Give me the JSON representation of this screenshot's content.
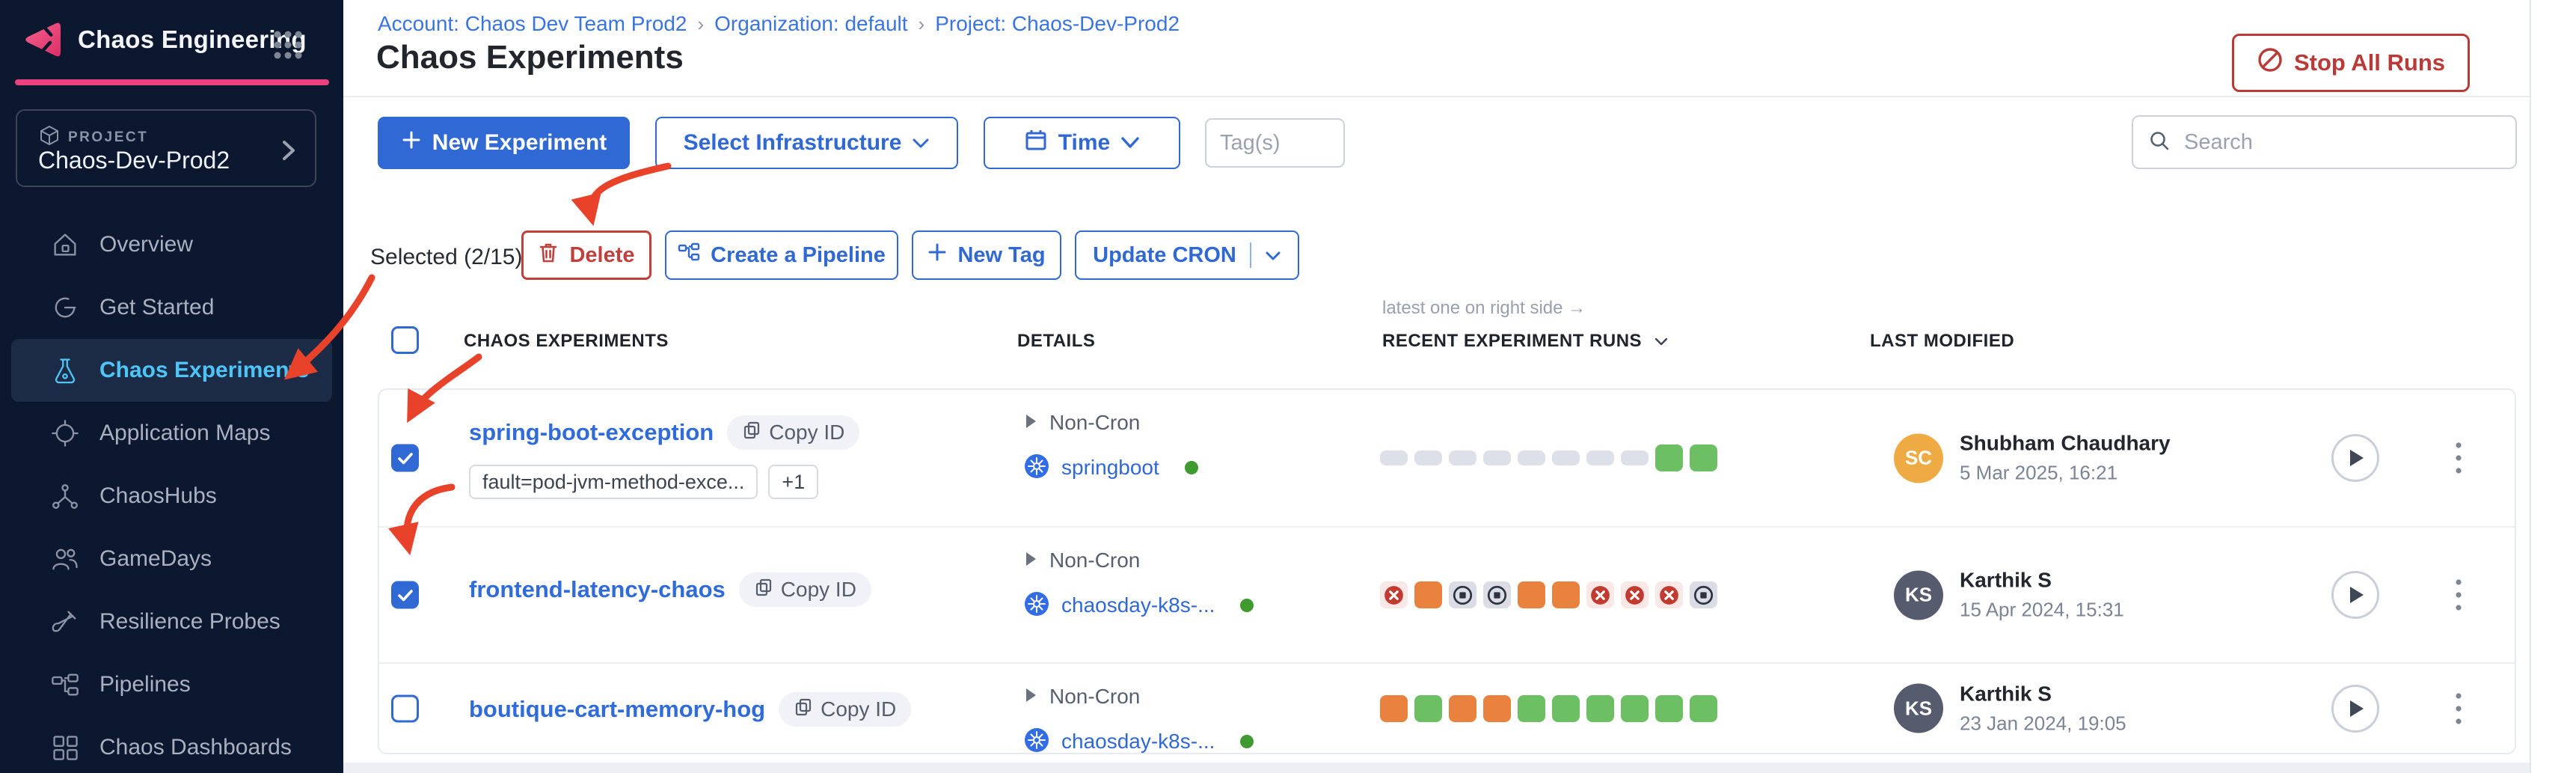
{
  "colors": {
    "sidebar_bg": "#0C1830",
    "accent_pink": "#E8417C",
    "primary_blue": "#3069D3",
    "link_blue": "#2F6BD9",
    "active_nav": "#4FC4F7",
    "danger_red": "#B93A36",
    "run_green": "#6CBF62",
    "run_orange": "#E8823E",
    "run_failed": "#C0392B",
    "infra_green_dot": "#3F9A2F",
    "annotation_red": "#E8432A"
  },
  "sidebar": {
    "module_title": "Chaos Engineering",
    "project_label": "PROJECT",
    "project_name": "Chaos-Dev-Prod2",
    "items": [
      {
        "label": "Overview"
      },
      {
        "label": "Get Started"
      },
      {
        "label": "Chaos Experiments"
      },
      {
        "label": "Application Maps"
      },
      {
        "label": "ChaosHubs"
      },
      {
        "label": "GameDays"
      },
      {
        "label": "Resilience Probes"
      },
      {
        "label": "Pipelines"
      },
      {
        "label": "Chaos Dashboards"
      }
    ]
  },
  "header": {
    "breadcrumb": [
      "Account: Chaos Dev Team Prod2",
      "Organization: default",
      "Project: Chaos-Dev-Prod2"
    ],
    "breadcrumb_separator": "›",
    "title": "Chaos Experiments",
    "stop_all_runs": "Stop All Runs"
  },
  "toolbar": {
    "new_experiment": "New Experiment",
    "select_infrastructure": "Select Infrastructure",
    "time": "Time",
    "tags_placeholder": "Tag(s)",
    "search_placeholder": "Search"
  },
  "actions": {
    "selected": "Selected (2/15)",
    "delete": "Delete",
    "create_pipeline": "Create a Pipeline",
    "new_tag": "New Tag",
    "update_cron": "Update CRON"
  },
  "table": {
    "note": "latest one on right side →",
    "headers": [
      "CHAOS EXPERIMENTS",
      "DETAILS",
      "RECENT EXPERIMENT RUNS",
      "LAST MODIFIED"
    ],
    "copy_id_label": "Copy ID",
    "select_all_checked": false,
    "rows": [
      {
        "name": "spring-boot-exception",
        "checked": true,
        "tags": [
          "fault=pod-jvm-method-exce...",
          "+1"
        ],
        "cron": "Non-Cron",
        "infra": "springboot",
        "runs": [
          "gray",
          "gray",
          "gray",
          "gray",
          "gray",
          "gray",
          "gray",
          "gray",
          "green",
          "green"
        ],
        "modified": {
          "initials": "SC",
          "avatar_color": "#EEAB43",
          "name": "Shubham Chaudhary",
          "date": "5 Mar 2025, 16:21"
        }
      },
      {
        "name": "frontend-latency-chaos",
        "checked": true,
        "tags": [],
        "cron": "Non-Cron",
        "infra": "chaosday-k8s-...",
        "runs": [
          "red-x",
          "orange",
          "stop",
          "stop",
          "orange",
          "orange",
          "red-x",
          "red-x",
          "red-x",
          "stop"
        ],
        "modified": {
          "initials": "KS",
          "avatar_color": "#565B6E",
          "name": "Karthik S",
          "date": "15 Apr 2024, 15:31"
        }
      },
      {
        "name": "boutique-cart-memory-hog",
        "checked": false,
        "tags": [],
        "cron": "Non-Cron",
        "infra": "chaosday-k8s-...",
        "runs": [
          "orange",
          "green",
          "orange",
          "orange",
          "green",
          "green",
          "green",
          "green",
          "green",
          "green"
        ],
        "modified": {
          "initials": "KS",
          "avatar_color": "#565B6E",
          "name": "Karthik S",
          "date": "23 Jan 2024, 19:05"
        }
      }
    ]
  }
}
